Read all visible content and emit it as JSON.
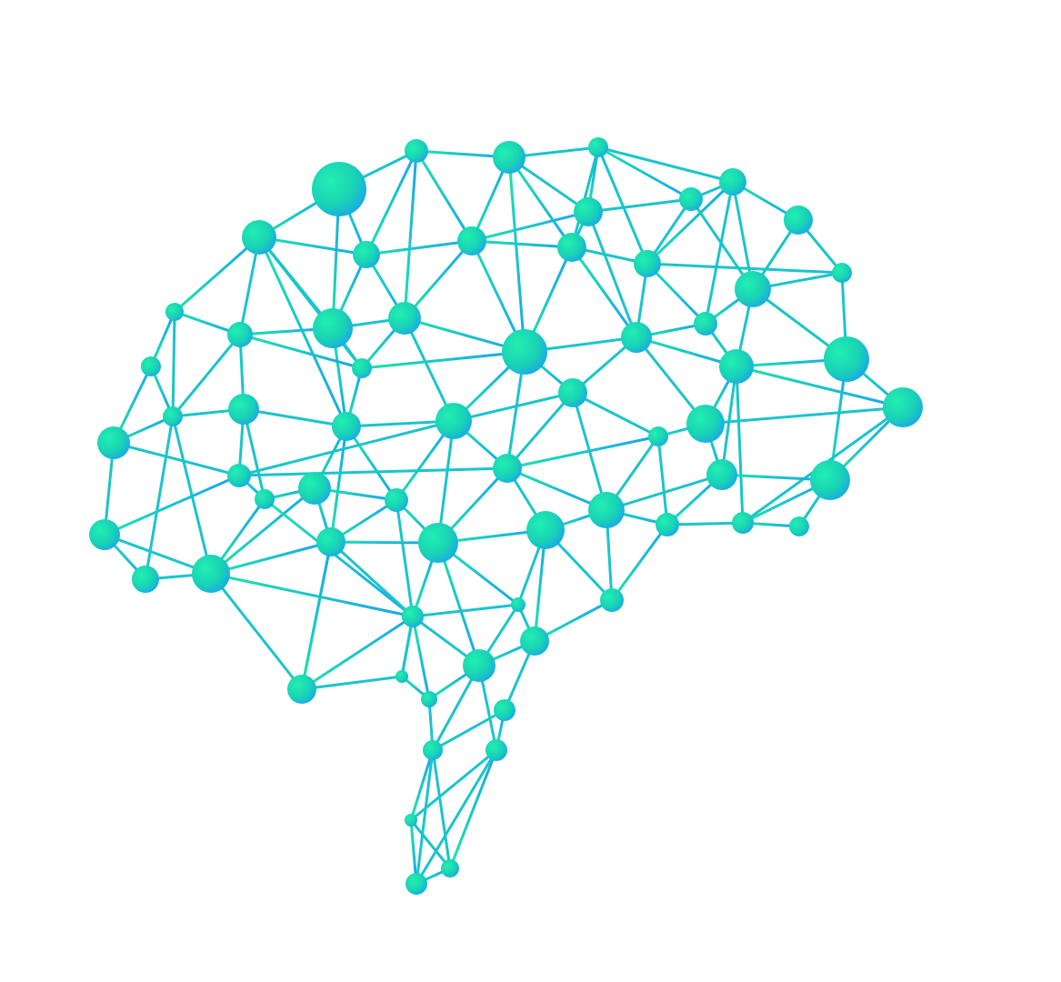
{
  "illustration": {
    "subject": "brain-network-icon",
    "colors": {
      "background": "#ffffff",
      "green": "#19e6a6",
      "blue": "#1aa3f0"
    }
  }
}
